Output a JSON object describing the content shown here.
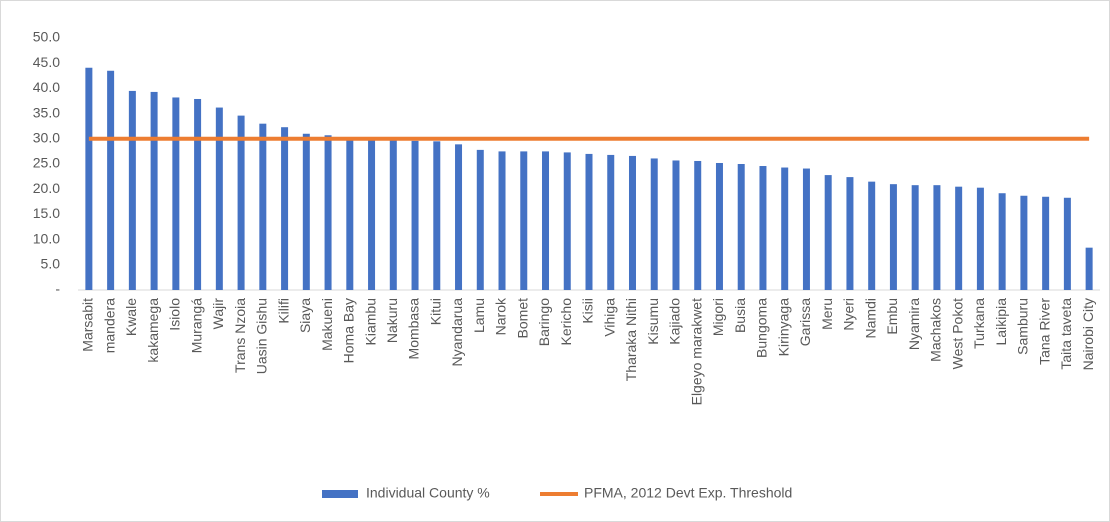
{
  "chart_data": {
    "type": "bar",
    "categories": [
      "Marsabit",
      "mandera",
      "Kwale",
      "kakamega",
      "Isiolo",
      "Murangá",
      "Wajir",
      "Trans Nzoia",
      "Uasin Gishu",
      "Kilifi",
      "Siaya",
      "Makueni",
      "Homa Bay",
      "Kiambu",
      "Nakuru",
      "Mombasa",
      "Kitui",
      "Nyandarua",
      "Lamu",
      "Narok",
      "Bomet",
      "Baringo",
      "Kericho",
      "Kisii",
      "Vihiga",
      "Tharaka Nithi",
      "Kisumu",
      "Kajiado",
      "Elgeyo marakwet",
      "Migori",
      "Busia",
      "Bungoma",
      "Kirinyaga",
      "Garissa",
      "Meru",
      "Nyeri",
      "Namdi",
      "Embu",
      "Nyamira",
      "Machakos",
      "West Pokot",
      "Turkana",
      "Laikipia",
      "Samburu",
      "Tana River",
      "Taita taveta",
      "Nairobi City"
    ],
    "series": [
      {
        "name": "Individual County %",
        "type": "bar",
        "color": "#4472c4",
        "values": [
          44.1,
          43.5,
          39.5,
          39.3,
          38.2,
          37.9,
          36.2,
          34.6,
          33.0,
          32.3,
          31.0,
          30.7,
          30.0,
          29.9,
          29.8,
          29.6,
          29.5,
          28.9,
          27.8,
          27.5,
          27.5,
          27.5,
          27.3,
          27.0,
          26.8,
          26.6,
          26.1,
          25.7,
          25.6,
          25.2,
          25.0,
          24.6,
          24.3,
          24.1,
          22.8,
          22.4,
          21.5,
          21.0,
          20.8,
          20.8,
          20.5,
          20.3,
          19.2,
          18.7,
          18.5,
          18.3,
          8.4
        ]
      },
      {
        "name": "PFMA, 2012 Devt Exp. Threshold",
        "type": "line",
        "color": "#ed7d31",
        "values": [
          30,
          30,
          30,
          30,
          30,
          30,
          30,
          30,
          30,
          30,
          30,
          30,
          30,
          30,
          30,
          30,
          30,
          30,
          30,
          30,
          30,
          30,
          30,
          30,
          30,
          30,
          30,
          30,
          30,
          30,
          30,
          30,
          30,
          30,
          30,
          30,
          30,
          30,
          30,
          30,
          30,
          30,
          30,
          30,
          30,
          30,
          30
        ]
      }
    ],
    "ylim": [
      0,
      50
    ],
    "yticks": [
      {
        "value": 0,
        "label": "-"
      },
      {
        "value": 5,
        "label": "5.0"
      },
      {
        "value": 10,
        "label": "10.0"
      },
      {
        "value": 15,
        "label": "15.0"
      },
      {
        "value": 20,
        "label": "20.0"
      },
      {
        "value": 25,
        "label": "25.0"
      },
      {
        "value": 30,
        "label": "30.0"
      },
      {
        "value": 35,
        "label": "35.0"
      },
      {
        "value": 40,
        "label": "40.0"
      },
      {
        "value": 45,
        "label": "45.0"
      },
      {
        "value": 50,
        "label": "50.0"
      }
    ],
    "grid": false,
    "legend": "bottom"
  }
}
